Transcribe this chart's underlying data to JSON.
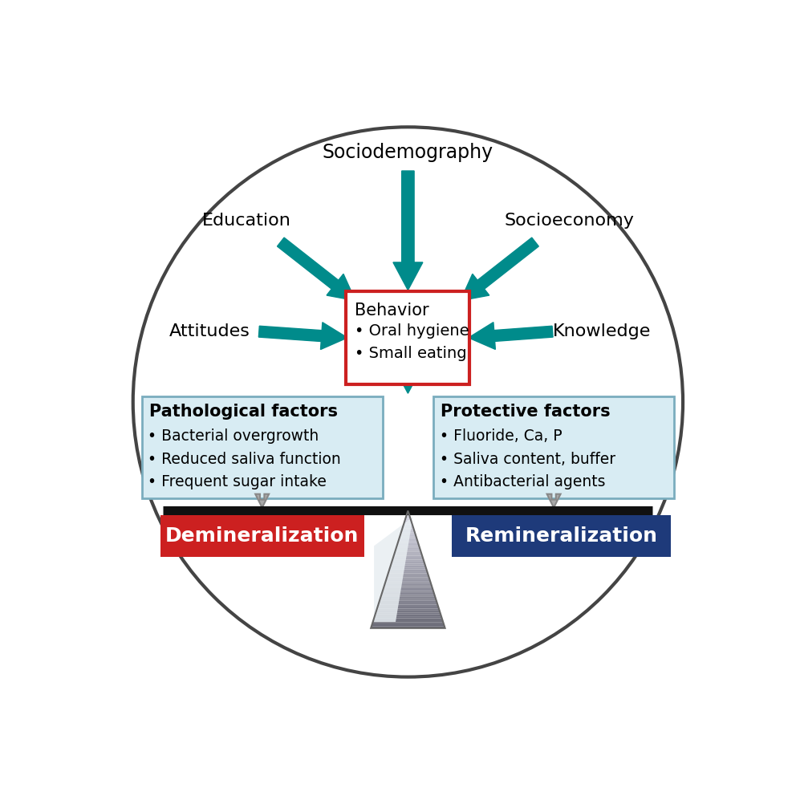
{
  "bg_color": "#ffffff",
  "circle_edgecolor": "#555555",
  "teal": "#008B8B",
  "red_box": "#cc2020",
  "blue_box": "#1e3a7a",
  "light_blue": "#d8ecf3",
  "light_blue_edge": "#7aadbe",
  "behavior_border": "#cc2020",
  "gray_arrow": "#999999",
  "bar_color": "#111111",
  "labels": {
    "sociodemography": "Sociodemography",
    "education": "Education",
    "socioeconomy": "Socioeconomy",
    "attitudes": "Attitudes",
    "knowledge": "Knowledge",
    "behavior_title": "Behavior",
    "behavior_items": [
      "• Oral hygiene",
      "• Small eating"
    ],
    "path_title": "Pathological factors",
    "path_items": [
      "• Bacterial overgrowth",
      "• Reduced saliva function",
      "• Frequent sugar intake"
    ],
    "prot_title": "Protective factors",
    "prot_items": [
      "• Fluoride, Ca, P",
      "• Saliva content, buffer",
      "• Antibacterial agents"
    ],
    "demin": "Demineralization",
    "remin": "Remineralization"
  }
}
